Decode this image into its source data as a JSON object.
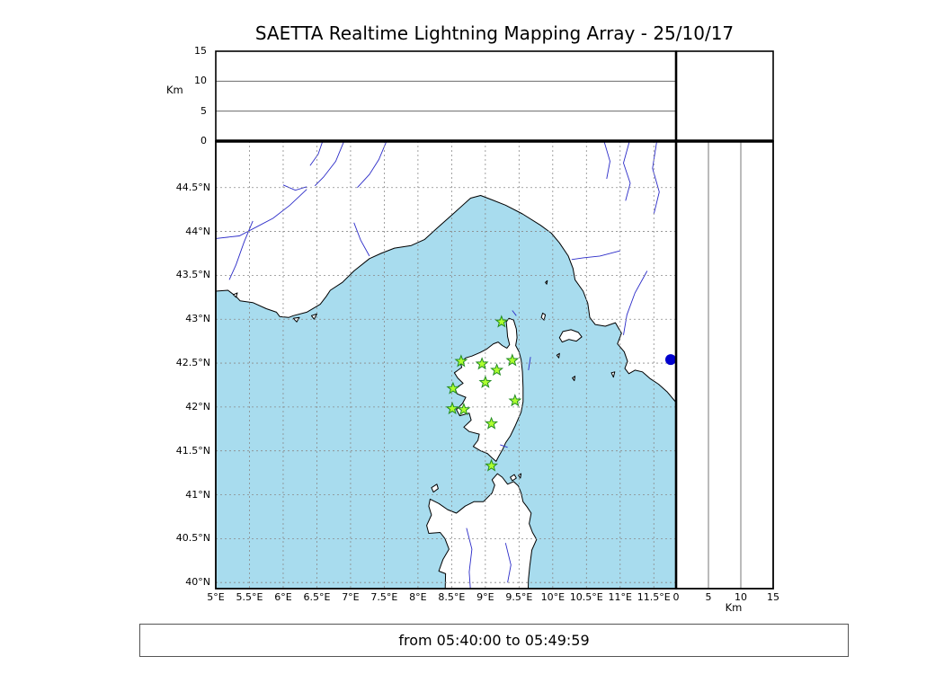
{
  "title": "SAETTA Realtime Lightning Mapping Array - 25/10/17",
  "footer": "from 05:40:00 to 05:49:59",
  "colors": {
    "sea": "#A8DCEE",
    "land": "#FFFFFF",
    "coast": "#000000",
    "river": "#2B2BC8",
    "grid": "#8A8A8A",
    "station_fill": "#ADFF2F",
    "station_edge": "#228B22",
    "event_dot": "#0000CD"
  },
  "axes": {
    "alt_top": {
      "label": "Km",
      "tick_values": [
        15,
        10,
        5,
        0
      ],
      "tick_labels": [
        "15",
        "10",
        "5",
        "0"
      ],
      "ref_lines": [
        5,
        10
      ]
    },
    "alt_right": {
      "label": "Km",
      "tick_values": [
        0,
        5,
        10,
        15
      ],
      "tick_labels": [
        "0",
        "5",
        "10",
        "15"
      ],
      "ref_lines": [
        5,
        10
      ]
    },
    "lon": {
      "values": [
        5,
        5.5,
        6,
        6.5,
        7,
        7.5,
        8,
        8.5,
        9,
        9.5,
        10,
        10.5,
        11,
        11.5
      ],
      "labels": [
        "5°E",
        "5.5°E",
        "6°E",
        "6.5°E",
        "7°E",
        "7.5°E",
        "8°E",
        "8.5°E",
        "9°E",
        "9.5°E",
        "10°E",
        "10.5°E",
        "11°E",
        "11.5°E"
      ]
    },
    "lat": {
      "values": [
        40,
        40.5,
        41,
        41.5,
        42,
        42.5,
        43,
        43.5,
        44,
        44.5
      ],
      "labels": [
        "40°N",
        "40.5°N",
        "41°N",
        "41.5°N",
        "42°N",
        "42.5°N",
        "43°N",
        "43.5°N",
        "44°N",
        "44.5°N"
      ]
    }
  },
  "chart_data": {
    "type": "scatter",
    "title": "SAETTA Realtime Lightning Mapping Array - 25/10/17",
    "time_window": "from 05:40:00 to 05:49:59",
    "map_panel": {
      "xlim_lon": [
        5.0,
        11.83
      ],
      "ylim_lat": [
        39.93,
        45.03
      ],
      "grid_step_deg": 0.5
    },
    "altitude_panel_top": {
      "ylabel": "Km",
      "ylim": [
        0,
        15
      ],
      "yticks": [
        0,
        5,
        10,
        15
      ],
      "points": []
    },
    "altitude_panel_right": {
      "xlabel": "Km",
      "xlim": [
        0,
        15
      ],
      "xticks": [
        0,
        5,
        10,
        15
      ],
      "points": []
    },
    "stations_lonlat": [
      [
        9.24,
        42.97
      ],
      [
        8.64,
        42.52
      ],
      [
        8.95,
        42.49
      ],
      [
        9.4,
        42.53
      ],
      [
        9.17,
        42.42
      ],
      [
        9.0,
        42.28
      ],
      [
        8.52,
        42.21
      ],
      [
        9.44,
        42.07
      ],
      [
        8.51,
        41.98
      ],
      [
        8.68,
        41.97
      ],
      [
        9.09,
        41.81
      ],
      [
        9.09,
        41.33
      ]
    ],
    "event_points_lonlat": [
      [
        11.75,
        42.54
      ]
    ]
  },
  "map": {
    "extent": {
      "lon_min": 5.0,
      "lon_max": 11.83,
      "lat_min": 39.93,
      "lat_max": 45.03
    },
    "grid_step": 0.5,
    "coast": {
      "mainland": [
        [
          4.85,
          43.35
        ],
        [
          5.0,
          43.32
        ],
        [
          5.18,
          43.33
        ],
        [
          5.3,
          43.26
        ],
        [
          5.36,
          43.21
        ],
        [
          5.55,
          43.19
        ],
        [
          5.75,
          43.12
        ],
        [
          5.9,
          43.08
        ],
        [
          5.95,
          43.03
        ],
        [
          6.08,
          43.02
        ],
        [
          6.15,
          43.04
        ],
        [
          6.35,
          43.08
        ],
        [
          6.55,
          43.17
        ],
        [
          6.64,
          43.26
        ],
        [
          6.7,
          43.33
        ],
        [
          6.88,
          43.42
        ],
        [
          7.05,
          43.55
        ],
        [
          7.28,
          43.69
        ],
        [
          7.45,
          43.75
        ],
        [
          7.65,
          43.81
        ],
        [
          7.9,
          43.84
        ],
        [
          8.1,
          43.91
        ],
        [
          8.3,
          44.05
        ],
        [
          8.55,
          44.22
        ],
        [
          8.78,
          44.38
        ],
        [
          8.93,
          44.41
        ],
        [
          9.1,
          44.36
        ],
        [
          9.3,
          44.3
        ],
        [
          9.55,
          44.2
        ],
        [
          9.82,
          44.07
        ],
        [
          9.98,
          43.98
        ],
        [
          10.1,
          43.87
        ],
        [
          10.23,
          43.72
        ],
        [
          10.3,
          43.58
        ],
        [
          10.33,
          43.45
        ],
        [
          10.45,
          43.32
        ],
        [
          10.52,
          43.18
        ],
        [
          10.55,
          43.02
        ],
        [
          10.63,
          42.94
        ],
        [
          10.78,
          42.92
        ],
        [
          10.93,
          42.96
        ],
        [
          11.02,
          42.84
        ],
        [
          10.96,
          42.72
        ],
        [
          11.06,
          42.63
        ],
        [
          11.11,
          42.52
        ],
        [
          11.07,
          42.44
        ],
        [
          11.13,
          42.38
        ],
        [
          11.22,
          42.42
        ],
        [
          11.33,
          42.4
        ],
        [
          11.45,
          42.32
        ],
        [
          11.57,
          42.26
        ],
        [
          11.7,
          42.17
        ],
        [
          11.82,
          42.06
        ],
        [
          11.9,
          42.0
        ],
        [
          11.95,
          45.25
        ],
        [
          4.85,
          45.25
        ]
      ],
      "corsica": [
        [
          9.35,
          43.01
        ],
        [
          9.42,
          42.99
        ],
        [
          9.46,
          42.89
        ],
        [
          9.47,
          42.79
        ],
        [
          9.45,
          42.7
        ],
        [
          9.5,
          42.63
        ],
        [
          9.53,
          42.54
        ],
        [
          9.55,
          42.4
        ],
        [
          9.56,
          42.22
        ],
        [
          9.56,
          42.06
        ],
        [
          9.53,
          41.94
        ],
        [
          9.44,
          41.78
        ],
        [
          9.37,
          41.67
        ],
        [
          9.3,
          41.59
        ],
        [
          9.26,
          41.52
        ],
        [
          9.2,
          41.44
        ],
        [
          9.16,
          41.38
        ],
        [
          9.1,
          41.42
        ],
        [
          9.03,
          41.47
        ],
        [
          8.93,
          41.5
        ],
        [
          8.82,
          41.55
        ],
        [
          8.89,
          41.62
        ],
        [
          8.91,
          41.69
        ],
        [
          8.76,
          41.72
        ],
        [
          8.68,
          41.77
        ],
        [
          8.79,
          41.85
        ],
        [
          8.76,
          41.93
        ],
        [
          8.62,
          41.9
        ],
        [
          8.57,
          41.97
        ],
        [
          8.66,
          42.04
        ],
        [
          8.71,
          42.11
        ],
        [
          8.58,
          42.15
        ],
        [
          8.55,
          42.21
        ],
        [
          8.67,
          42.27
        ],
        [
          8.59,
          42.33
        ],
        [
          8.54,
          42.39
        ],
        [
          8.65,
          42.45
        ],
        [
          8.63,
          42.51
        ],
        [
          8.71,
          42.56
        ],
        [
          8.8,
          42.58
        ],
        [
          8.92,
          42.62
        ],
        [
          9.02,
          42.66
        ],
        [
          9.12,
          42.72
        ],
        [
          9.19,
          42.74
        ],
        [
          9.25,
          42.7
        ],
        [
          9.32,
          42.67
        ],
        [
          9.36,
          42.71
        ],
        [
          9.33,
          42.8
        ],
        [
          9.32,
          42.9
        ],
        [
          9.31,
          42.97
        ]
      ],
      "sardinia": [
        [
          8.4,
          39.8
        ],
        [
          8.41,
          40.1
        ],
        [
          8.31,
          40.13
        ],
        [
          8.37,
          40.26
        ],
        [
          8.46,
          40.38
        ],
        [
          8.4,
          40.5
        ],
        [
          8.33,
          40.57
        ],
        [
          8.16,
          40.56
        ],
        [
          8.13,
          40.65
        ],
        [
          8.2,
          40.77
        ],
        [
          8.16,
          40.87
        ],
        [
          8.18,
          40.95
        ],
        [
          8.31,
          40.9
        ],
        [
          8.44,
          40.83
        ],
        [
          8.57,
          40.79
        ],
        [
          8.7,
          40.87
        ],
        [
          8.83,
          40.92
        ],
        [
          8.97,
          40.92
        ],
        [
          9.1,
          41.02
        ],
        [
          9.14,
          41.11
        ],
        [
          9.1,
          41.17
        ],
        [
          9.18,
          41.24
        ],
        [
          9.25,
          41.2
        ],
        [
          9.33,
          41.12
        ],
        [
          9.42,
          41.15
        ],
        [
          9.49,
          41.1
        ],
        [
          9.53,
          41.02
        ],
        [
          9.56,
          40.92
        ],
        [
          9.62,
          40.86
        ],
        [
          9.68,
          40.79
        ],
        [
          9.65,
          40.67
        ],
        [
          9.7,
          40.57
        ],
        [
          9.76,
          40.49
        ],
        [
          9.69,
          40.37
        ],
        [
          9.66,
          40.19
        ],
        [
          9.64,
          40.04
        ],
        [
          9.63,
          39.8
        ]
      ],
      "islands": [
        [
          [
            8.23,
            41.03
          ],
          [
            8.3,
            41.07
          ],
          [
            8.28,
            41.12
          ],
          [
            8.2,
            41.08
          ]
        ],
        [
          [
            9.37,
            41.2
          ],
          [
            9.43,
            41.23
          ],
          [
            9.46,
            41.19
          ],
          [
            9.4,
            41.16
          ]
        ],
        [
          [
            9.49,
            41.22
          ],
          [
            9.53,
            41.24
          ],
          [
            9.52,
            41.19
          ]
        ],
        [
          [
            10.1,
            42.79
          ],
          [
            10.15,
            42.86
          ],
          [
            10.27,
            42.88
          ],
          [
            10.38,
            42.85
          ],
          [
            10.43,
            42.8
          ],
          [
            10.35,
            42.75
          ],
          [
            10.24,
            42.77
          ],
          [
            10.14,
            42.74
          ]
        ],
        [
          [
            9.83,
            43.02
          ],
          [
            9.85,
            43.07
          ],
          [
            9.89,
            43.05
          ],
          [
            9.87,
            42.99
          ]
        ],
        [
          [
            9.89,
            43.42
          ],
          [
            9.92,
            43.44
          ],
          [
            9.91,
            43.4
          ]
        ],
        [
          [
            10.06,
            42.59
          ],
          [
            10.1,
            42.61
          ],
          [
            10.09,
            42.56
          ]
        ],
        [
          [
            10.29,
            42.33
          ],
          [
            10.33,
            42.35
          ],
          [
            10.32,
            42.3
          ]
        ],
        [
          [
            10.87,
            42.39
          ],
          [
            10.92,
            42.4
          ],
          [
            10.9,
            42.34
          ]
        ],
        [
          [
            6.15,
            43.01
          ],
          [
            6.24,
            43.02
          ],
          [
            6.2,
            42.97
          ]
        ],
        [
          [
            6.42,
            43.04
          ],
          [
            6.5,
            43.06
          ],
          [
            6.46,
            43.0
          ]
        ],
        [
          [
            5.26,
            43.28
          ],
          [
            5.32,
            43.3
          ],
          [
            5.3,
            43.25
          ]
        ]
      ]
    },
    "rivers": [
      [
        [
          7.55,
          45.06
        ],
        [
          7.42,
          44.82
        ],
        [
          7.28,
          44.65
        ],
        [
          7.1,
          44.5
        ]
      ],
      [
        [
          6.92,
          45.06
        ],
        [
          6.78,
          44.8
        ],
        [
          6.6,
          44.62
        ],
        [
          6.47,
          44.52
        ]
      ],
      [
        [
          6.6,
          45.06
        ],
        [
          6.52,
          44.88
        ],
        [
          6.4,
          44.75
        ]
      ],
      [
        [
          6.35,
          44.48
        ],
        [
          6.1,
          44.3
        ],
        [
          5.85,
          44.15
        ],
        [
          5.6,
          44.05
        ],
        [
          5.35,
          43.95
        ],
        [
          5.0,
          43.92
        ]
      ],
      [
        [
          5.55,
          44.12
        ],
        [
          5.42,
          43.88
        ],
        [
          5.3,
          43.62
        ],
        [
          5.2,
          43.45
        ]
      ],
      [
        [
          6.0,
          44.53
        ],
        [
          6.18,
          44.47
        ],
        [
          6.35,
          44.51
        ]
      ],
      [
        [
          7.05,
          44.1
        ],
        [
          7.15,
          43.9
        ],
        [
          7.28,
          43.72
        ]
      ],
      [
        [
          11.0,
          43.78
        ],
        [
          10.7,
          43.72
        ],
        [
          10.45,
          43.7
        ],
        [
          10.28,
          43.68
        ]
      ],
      [
        [
          10.75,
          45.06
        ],
        [
          10.85,
          44.8
        ],
        [
          10.8,
          44.6
        ]
      ],
      [
        [
          11.15,
          45.06
        ],
        [
          11.05,
          44.78
        ],
        [
          11.15,
          44.55
        ],
        [
          11.08,
          44.35
        ]
      ],
      [
        [
          11.55,
          45.06
        ],
        [
          11.48,
          44.72
        ],
        [
          11.58,
          44.45
        ],
        [
          11.5,
          44.2
        ]
      ],
      [
        [
          11.4,
          43.55
        ],
        [
          11.22,
          43.3
        ],
        [
          11.1,
          43.05
        ],
        [
          11.05,
          42.82
        ]
      ],
      [
        [
          8.72,
          40.62
        ],
        [
          8.8,
          40.38
        ],
        [
          8.76,
          40.12
        ],
        [
          8.78,
          39.9
        ]
      ],
      [
        [
          9.3,
          40.45
        ],
        [
          9.38,
          40.2
        ],
        [
          9.33,
          40.0
        ]
      ],
      [
        [
          9.67,
          42.57
        ],
        [
          9.64,
          42.42
        ]
      ],
      [
        [
          9.4,
          43.1
        ],
        [
          9.46,
          43.04
        ]
      ],
      [
        [
          9.22,
          41.57
        ],
        [
          9.33,
          41.54
        ]
      ]
    ]
  }
}
